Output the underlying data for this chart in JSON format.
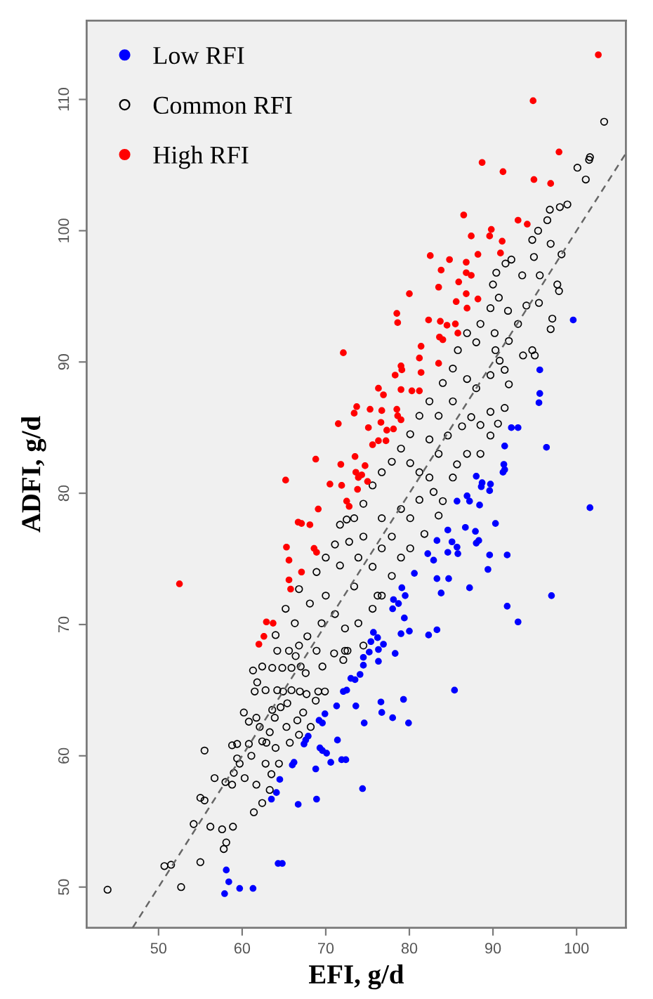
{
  "chart_data": {
    "type": "scatter",
    "xlabel": "EFI, g/d",
    "ylabel": "ADFI, g/d",
    "xlim": [
      41.4,
      105.9
    ],
    "ylim": [
      46.9,
      116.0
    ],
    "xticks": [
      50,
      60,
      70,
      80,
      90,
      100
    ],
    "yticks": [
      50,
      60,
      70,
      80,
      90,
      100,
      110
    ],
    "legend": "top left",
    "marker": "circle",
    "series": [
      {
        "name": "Low RFI",
        "color": "#0000ff",
        "x": [
          99.6,
          95.6,
          95.6,
          95.5,
          92.2,
          93.0,
          91.4,
          96.4,
          91.3,
          91.4,
          91.2,
          88.0,
          88.7,
          89.7,
          89.6,
          88.6,
          101.6,
          85.7,
          86.9,
          87.2,
          88.4,
          90.3,
          86.7,
          84.6,
          87.9,
          83.3,
          85.1,
          85.7,
          84.6,
          85.8,
          88.0,
          88.3,
          89.6,
          91.7,
          82.2,
          82.9,
          89.4,
          83.3,
          84.7,
          80.6,
          87.2,
          97.0,
          83.8,
          79.1,
          79.5,
          78.1,
          78.7,
          78.0,
          91.7,
          79.4,
          93.0,
          80.0,
          79.0,
          82.3,
          83.3,
          75.7,
          76.2,
          75.4,
          76.9,
          76.3,
          75.2,
          78.3,
          74.5,
          76.3,
          74.5,
          74.1,
          73.5,
          73.0,
          72.5,
          72.1,
          85.4,
          71.3,
          73.6,
          76.6,
          76.7,
          79.3,
          78.0,
          79.9,
          74.6,
          69.9,
          69.2,
          69.6,
          67.9,
          67.6,
          67.4,
          71.4,
          69.3,
          69.6,
          70.1,
          71.9,
          72.4,
          70.6,
          66.2,
          66.0,
          68.8,
          64.5,
          64.1,
          63.5,
          68.9,
          66.7,
          74.4,
          64.3,
          64.8,
          58.1,
          58.4,
          59.7,
          61.3,
          57.9
        ],
        "values": [
          93.2,
          89.4,
          87.6,
          86.9,
          85.0,
          85.0,
          83.6,
          83.5,
          82.2,
          81.8,
          81.6,
          81.3,
          80.8,
          80.7,
          80.2,
          80.5,
          78.9,
          79.4,
          79.8,
          79.4,
          79.1,
          77.7,
          77.4,
          77.2,
          77.1,
          76.4,
          76.3,
          75.9,
          75.5,
          75.4,
          76.2,
          76.4,
          75.3,
          75.3,
          75.4,
          74.9,
          74.2,
          73.5,
          73.5,
          73.9,
          72.8,
          72.2,
          72.4,
          72.8,
          72.2,
          71.9,
          71.6,
          71.2,
          71.4,
          70.5,
          70.2,
          69.5,
          69.3,
          69.2,
          69.6,
          69.4,
          69.0,
          68.7,
          68.5,
          68.1,
          67.9,
          67.8,
          67.5,
          67.2,
          66.9,
          66.2,
          65.8,
          65.9,
          65.0,
          64.9,
          65.0,
          63.8,
          63.8,
          64.1,
          63.3,
          64.3,
          62.9,
          62.5,
          62.5,
          63.2,
          62.7,
          62.5,
          61.5,
          61.2,
          60.9,
          61.2,
          60.6,
          60.4,
          60.2,
          59.7,
          59.7,
          59.5,
          59.5,
          59.3,
          59.0,
          58.2,
          57.2,
          56.7,
          56.7,
          56.3,
          57.5,
          51.8,
          51.8,
          51.3,
          50.4,
          49.9,
          49.9,
          49.5
        ]
      },
      {
        "name": "Common RFI",
        "color": "#000000",
        "x": [
          103.3,
          101.6,
          101.5,
          100.1,
          101.1,
          98.9,
          96.8,
          98.0,
          96.5,
          95.4,
          94.7,
          96.9,
          94.9,
          98.2,
          95.6,
          97.7,
          97.9,
          95.5,
          94.0,
          97.1,
          96.9,
          93.5,
          92.2,
          91.5,
          90.4,
          90.0,
          90.7,
          89.7,
          91.8,
          93.0,
          88.5,
          86.9,
          66.8,
          65.2,
          66.3,
          64.0,
          68.1,
          68.9,
          70.0,
          71.1,
          71.7,
          72.5,
          70.0,
          71.1,
          72.3,
          73.9,
          75.6,
          76.7,
          77.9,
          79.0,
          80.1,
          81.8,
          83.5,
          84.0,
          82.9,
          85.2,
          85.7,
          86.9,
          88.5,
          89.7,
          91.4,
          91.9,
          93.6,
          94.7,
          90.8,
          88.0,
          90.2,
          85.8,
          85.2,
          84.0,
          82.4,
          81.2,
          80.1,
          79.0,
          77.9,
          76.7,
          75.6,
          74.5,
          73.4,
          72.8,
          71.7,
          74.5,
          76.7,
          79.0,
          81.2,
          77.9,
          80.1,
          82.4,
          81.2,
          80.1,
          83.5,
          84.6,
          86.3,
          87.4,
          89.7,
          88.0,
          86.9,
          89.7,
          91.4,
          83.5,
          85.2,
          82.4,
          95.0,
          90.3,
          91.9,
          88.5,
          90.6,
          73.9,
          75.6,
          76.7,
          69.5,
          67.8,
          68.9,
          66.8,
          72.3,
          74.5,
          73.4,
          76.2,
          65.6,
          43.9,
          50.7,
          51.5,
          52.7,
          55.0,
          57.8,
          58.1,
          57.6,
          56.2,
          54.2,
          58.9,
          61.4,
          62.4,
          63.3,
          55.0,
          55.5,
          61.7,
          63.5,
          62.8,
          64.4,
          58.0,
          58.8,
          56.7,
          59.0,
          60.3,
          59.7,
          59.4,
          61.1,
          59.4,
          58.8,
          60.8,
          55.5,
          62.4,
          62.9,
          64.0,
          65.7,
          66.8,
          62.1,
          63.3,
          65.3,
          60.8,
          61.7,
          63.9,
          66.6,
          68.2,
          60.2,
          63.6,
          64.6,
          65.4,
          67.3,
          68.8,
          61.5,
          61.8,
          62.8,
          64.2,
          64.9,
          65.9,
          66.9,
          67.7,
          69.1,
          69.9,
          61.3,
          62.4,
          63.6,
          64.8,
          65.9,
          67.6,
          69.6,
          71.0,
          72.1,
          72.6,
          64.2,
          66.4,
          67.0
        ],
        "values": [
          108.3,
          105.6,
          105.4,
          104.8,
          103.9,
          102.0,
          101.6,
          101.8,
          100.8,
          100.0,
          99.3,
          99.0,
          98.0,
          98.2,
          96.6,
          95.9,
          95.4,
          94.5,
          94.3,
          93.3,
          92.5,
          96.6,
          97.8,
          97.5,
          96.8,
          95.9,
          94.9,
          94.1,
          93.9,
          92.9,
          92.9,
          92.2,
          72.7,
          71.2,
          70.1,
          69.2,
          71.6,
          74.0,
          75.1,
          76.1,
          77.6,
          78.0,
          72.2,
          70.8,
          69.7,
          70.1,
          71.2,
          72.2,
          73.7,
          75.1,
          75.8,
          76.9,
          78.3,
          79.4,
          80.1,
          81.2,
          82.2,
          83.0,
          83.0,
          84.4,
          86.5,
          88.3,
          90.5,
          90.9,
          90.1,
          91.5,
          92.2,
          90.9,
          89.5,
          88.4,
          87.0,
          85.9,
          84.5,
          83.4,
          82.4,
          81.6,
          80.6,
          79.2,
          78.1,
          76.3,
          74.5,
          76.7,
          78.1,
          78.8,
          79.5,
          76.7,
          78.1,
          81.2,
          81.6,
          82.3,
          83.0,
          84.4,
          85.1,
          85.8,
          86.2,
          88.0,
          88.7,
          89.0,
          89.4,
          85.9,
          87.0,
          84.1,
          90.5,
          90.9,
          91.6,
          85.2,
          85.3,
          75.1,
          74.4,
          75.8,
          70.1,
          69.1,
          68.0,
          68.4,
          68.0,
          68.4,
          72.9,
          72.2,
          68.0,
          49.8,
          51.6,
          51.7,
          50.0,
          51.9,
          52.9,
          53.4,
          54.4,
          54.6,
          54.8,
          54.6,
          55.7,
          56.4,
          57.4,
          56.8,
          56.6,
          57.8,
          58.6,
          59.4,
          59.4,
          58.0,
          57.8,
          58.3,
          58.7,
          58.3,
          59.4,
          59.8,
          60.0,
          60.9,
          60.8,
          60.9,
          60.4,
          61.1,
          61.0,
          60.6,
          61.0,
          61.6,
          62.2,
          61.8,
          62.2,
          62.6,
          62.9,
          62.9,
          62.7,
          62.2,
          63.3,
          63.5,
          63.7,
          64.0,
          63.3,
          64.2,
          64.9,
          65.6,
          65.0,
          65.0,
          64.9,
          65.0,
          64.9,
          64.7,
          64.9,
          64.9,
          66.5,
          66.8,
          66.7,
          66.7,
          66.7,
          66.3,
          66.8,
          67.8,
          67.3,
          68.0,
          68.0,
          67.6,
          66.8
        ]
      },
      {
        "name": "High RFI",
        "color": "#ff0000",
        "x": [
          102.6,
          94.8,
          97.9,
          88.7,
          91.2,
          94.9,
          96.9,
          86.5,
          93.0,
          94.1,
          89.8,
          87.4,
          89.6,
          91.1,
          88.2,
          82.5,
          84.8,
          86.8,
          90.9,
          83.8,
          86.8,
          87.4,
          85.9,
          83.5,
          86.8,
          80.0,
          88.2,
          85.6,
          86.9,
          78.5,
          78.6,
          82.3,
          83.7,
          84.5,
          85.5,
          72.1,
          81.2,
          81.4,
          83.6,
          84.0,
          85.8,
          83.5,
          79.0,
          78.3,
          79.1,
          81.4,
          76.3,
          76.9,
          79.0,
          80.3,
          81.2,
          73.7,
          73.4,
          75.3,
          76.7,
          78.5,
          78.6,
          79.0,
          71.5,
          75.1,
          76.6,
          77.3,
          78.1,
          75.6,
          76.3,
          77.2,
          68.8,
          71.8,
          73.5,
          74.7,
          73.6,
          74.3,
          73.9,
          75.0,
          65.2,
          70.5,
          71.9,
          73.8,
          72.5,
          72.8,
          69.1,
          66.7,
          67.1,
          68.1,
          68.6,
          68.9,
          65.3,
          65.6,
          67.1,
          65.6,
          65.8,
          52.5,
          62.9,
          63.7,
          62.6,
          62.0
        ],
        "values": [
          113.4,
          109.9,
          106.0,
          105.2,
          104.5,
          103.9,
          103.6,
          101.2,
          100.8,
          100.5,
          100.1,
          99.6,
          99.6,
          99.2,
          98.2,
          98.1,
          97.8,
          97.6,
          98.3,
          97.0,
          96.8,
          96.6,
          96.1,
          95.7,
          95.2,
          95.2,
          94.8,
          94.6,
          94.1,
          93.7,
          93.0,
          93.2,
          93.1,
          92.8,
          92.9,
          90.7,
          90.3,
          91.2,
          91.9,
          91.7,
          92.2,
          89.9,
          89.7,
          89.0,
          89.4,
          89.2,
          88.0,
          87.5,
          87.9,
          87.8,
          87.8,
          86.6,
          86.1,
          86.4,
          86.3,
          86.4,
          85.9,
          85.6,
          85.3,
          85.0,
          85.4,
          84.8,
          84.9,
          83.7,
          84.0,
          84.0,
          82.6,
          82.2,
          82.8,
          82.1,
          81.6,
          81.4,
          81.2,
          80.9,
          81.0,
          80.7,
          80.6,
          80.3,
          79.4,
          79.0,
          78.8,
          77.8,
          77.7,
          77.6,
          75.8,
          75.5,
          75.9,
          74.9,
          74.0,
          73.4,
          72.7,
          73.1,
          70.2,
          70.1,
          69.1,
          68.5
        ]
      },
      {
        "type": "line",
        "x": [
          46.9,
          105.8
        ],
        "values": [
          46.9,
          105.8
        ],
        "color": "#666666",
        "line_style": "dashed",
        "marker": "none"
      }
    ]
  }
}
